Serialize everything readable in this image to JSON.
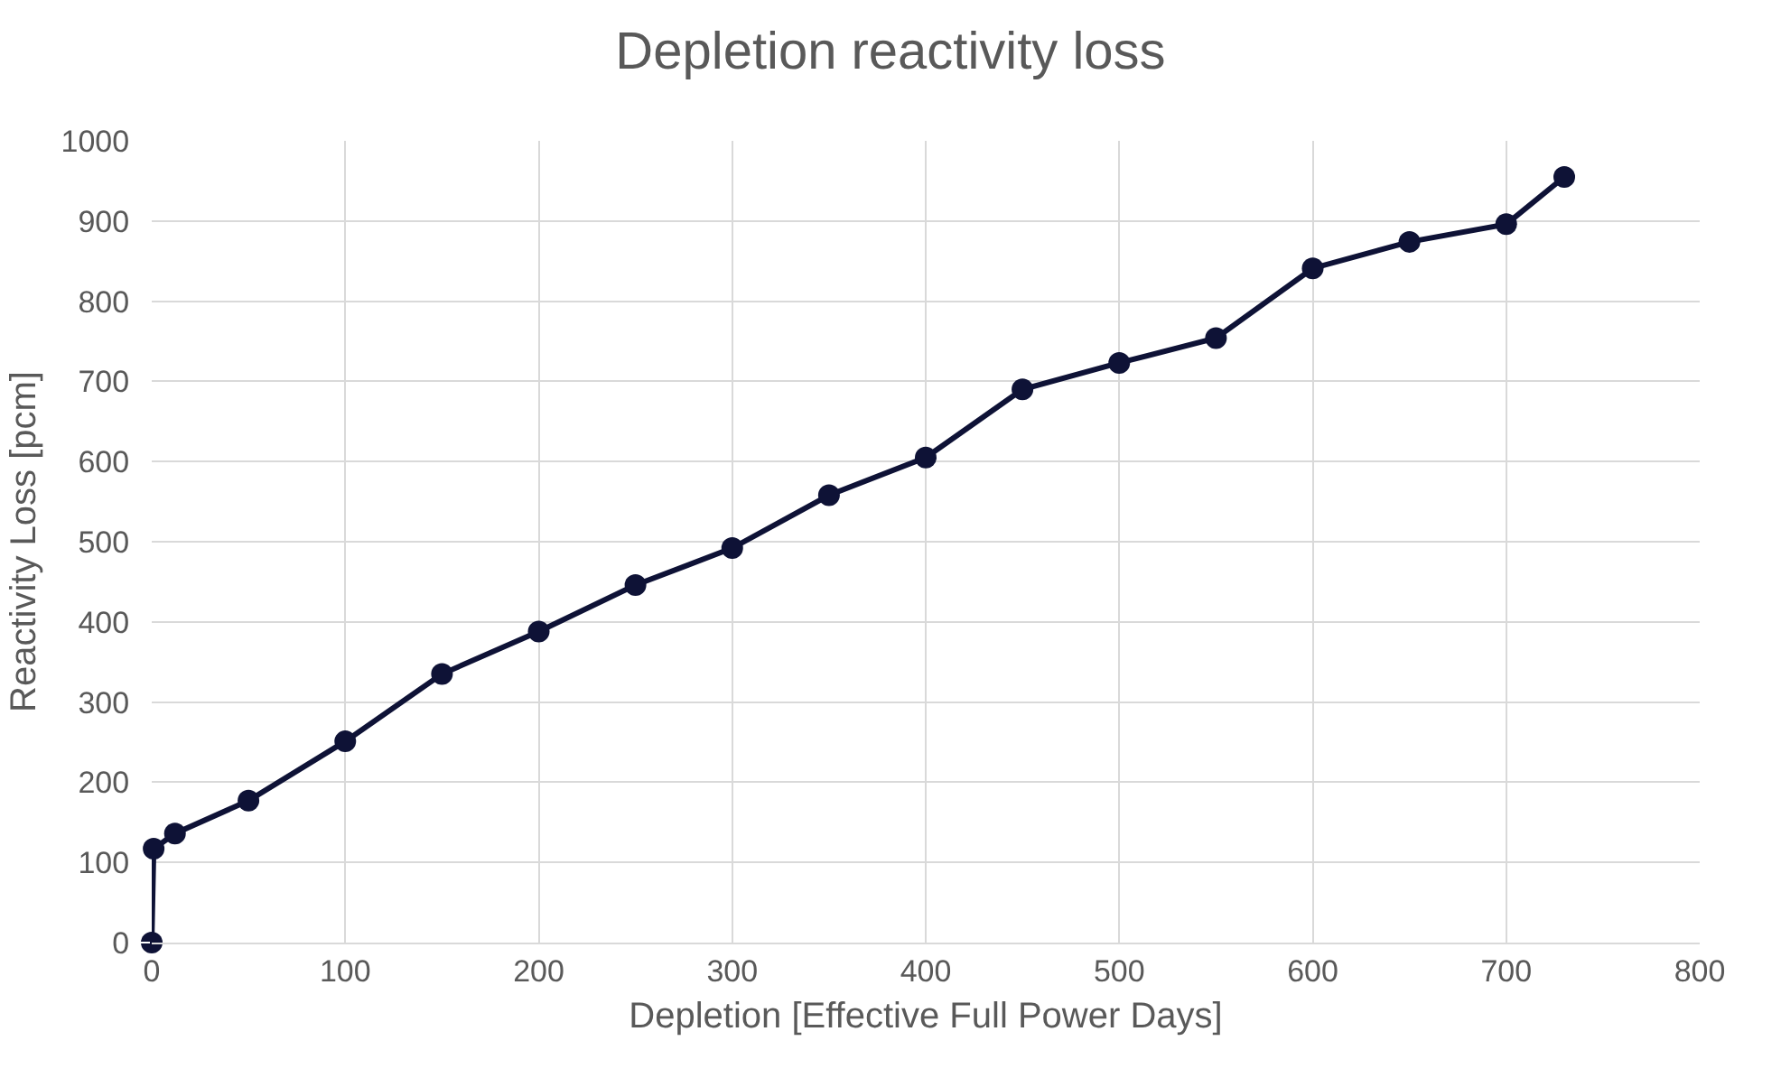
{
  "chart_data": {
    "type": "line",
    "title": "Depletion reactivity loss",
    "xlabel": "Depletion [Effective Full Power Days]",
    "ylabel": "Reactivity Loss [pcm]",
    "x": [
      0,
      1,
      12,
      50,
      100,
      150,
      200,
      250,
      300,
      350,
      400,
      450,
      500,
      550,
      600,
      650,
      700,
      730
    ],
    "series": [
      {
        "color": "#0e1236",
        "values": [
          0,
          117,
          136,
          177,
          251,
          335,
          388,
          446,
          492,
          558,
          605,
          690,
          723,
          754,
          841,
          874,
          896,
          955
        ]
      }
    ],
    "xlim": [
      0,
      800
    ],
    "xticks": [
      0,
      100,
      200,
      300,
      400,
      500,
      600,
      700,
      800
    ],
    "ylim": [
      0,
      1000
    ],
    "yticks": [
      0,
      100,
      200,
      300,
      400,
      500,
      600,
      700,
      800,
      900,
      1000
    ],
    "grid": true,
    "marker": "circle",
    "line_style": "solid"
  }
}
